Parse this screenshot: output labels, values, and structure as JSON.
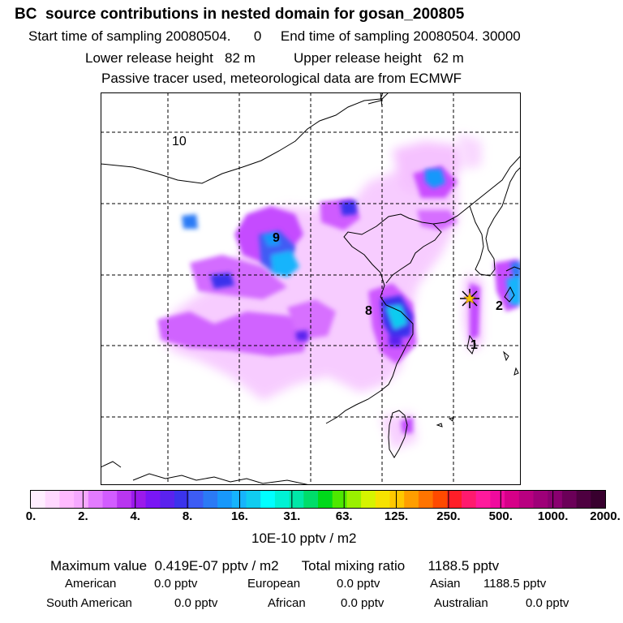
{
  "header": {
    "title": "BC  source contributions in nested domain for gosan_200805",
    "start_label": "Start time of sampling",
    "start_value": "20080504.      0",
    "end_label": "End time of sampling",
    "end_value": "20080504. 30000",
    "lower_label": "Lower release height",
    "lower_value": "82 m",
    "upper_label": "Upper release height",
    "upper_value": "62 m",
    "note": "Passive tracer used, meteorological data are from ECMWF"
  },
  "map": {
    "region_labels": [
      "10",
      "9",
      "8",
      "2",
      "1"
    ],
    "station_marker_icon": "asterisk-star-icon"
  },
  "colorbar": {
    "colors": [
      "#ffeeff",
      "#ffd8ff",
      "#ffbaff",
      "#f5a8ff",
      "#e37bff",
      "#d25cff",
      "#b836f0",
      "#9b1aeb",
      "#7a16f5",
      "#5a22ee",
      "#3b33ec",
      "#3d5cf4",
      "#2b7af5",
      "#1898fb",
      "#16b4fc",
      "#10ccf0",
      "#00ffff",
      "#00f2d4",
      "#00e8a8",
      "#00dd6a",
      "#00d91a",
      "#4ee800",
      "#9af000",
      "#d6f400",
      "#f6e200",
      "#ffc800",
      "#ff9e00",
      "#ff7400",
      "#ff4a00",
      "#ff1e28",
      "#ff1a6e",
      "#ff1a9c",
      "#f00a9e",
      "#d60088",
      "#b80080",
      "#9e0078",
      "#8a0070",
      "#6b0058",
      "#4e0040",
      "#38002e"
    ],
    "tick_labels": [
      "0.",
      "2.",
      "4.",
      "8.",
      "16.",
      "31.",
      "63.",
      "125.",
      "250.",
      "500.",
      "1000.",
      "2000."
    ],
    "units": "10E-10 pptv / m2"
  },
  "stats": {
    "max_label": "Maximum value",
    "max_value": "0.419E-07 pptv / m2",
    "total_label": "Total mixing ratio",
    "total_value": "1188.5 pptv",
    "american_label": "American",
    "american_value": "0.0 pptv",
    "european_label": "European",
    "european_value": "0.0 pptv",
    "asian_label": "Asian",
    "asian_value": "1188.5 pptv",
    "south_american_label": "South American",
    "south_american_value": "0.0 pptv",
    "african_label": "African",
    "african_value": "0.0 pptv",
    "australian_label": "Australian",
    "australian_value": "0.0 pptv"
  }
}
